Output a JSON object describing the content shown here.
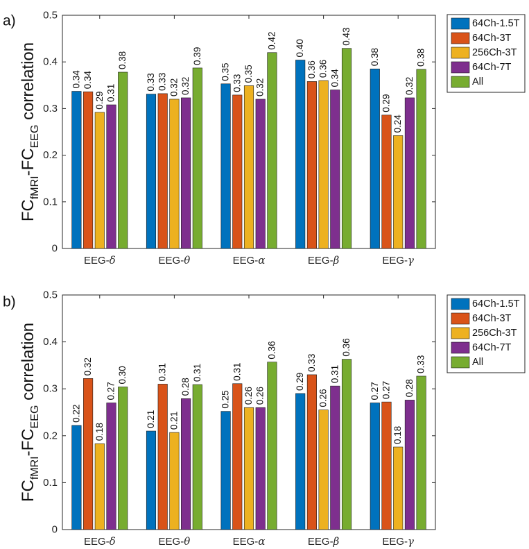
{
  "chart_data": [
    {
      "type": "bar",
      "panel_label": "a)",
      "categories": [
        "EEG-δ",
        "EEG-θ",
        "EEG-α",
        "EEG-β",
        "EEG-γ"
      ],
      "category_prefix": "EEG-",
      "category_symbols": [
        "δ",
        "θ",
        "α",
        "β",
        "γ"
      ],
      "series": [
        {
          "name": "64Ch-1.5T",
          "color": "#0072BD",
          "values": [
            0.337,
            0.331,
            0.353,
            0.404,
            0.385
          ],
          "labels": [
            "0.34",
            "0.33",
            "0.35",
            "0.40",
            "0.38"
          ]
        },
        {
          "name": "64Ch-3T",
          "color": "#D95319",
          "values": [
            0.336,
            0.332,
            0.329,
            0.358,
            0.286
          ],
          "labels": [
            "0.34",
            "0.33",
            "0.33",
            "0.36",
            "0.29"
          ]
        },
        {
          "name": "256Ch-3T",
          "color": "#EDB120",
          "values": [
            0.292,
            0.32,
            0.349,
            0.36,
            0.242
          ],
          "labels": [
            "0.29",
            "0.32",
            "0.35",
            "0.36",
            "0.24"
          ]
        },
        {
          "name": "64Ch-7T",
          "color": "#7E2F8E",
          "values": [
            0.308,
            0.323,
            0.32,
            0.34,
            0.323
          ],
          "labels": [
            "0.31",
            "0.32",
            "0.32",
            "0.34",
            "0.32"
          ]
        },
        {
          "name": "All",
          "color": "#77AC30",
          "values": [
            0.378,
            0.387,
            0.42,
            0.429,
            0.384
          ],
          "labels": [
            "0.38",
            "0.39",
            "0.42",
            "0.43",
            "0.38"
          ]
        }
      ],
      "ylabel": {
        "base1": "FC",
        "sub1": "fMRI",
        "mid": "-FC",
        "sub2": "EEG",
        "tail": " correlation"
      },
      "ylim": [
        0,
        0.5
      ],
      "yticks": [
        "0",
        "0.1",
        "0.2",
        "0.3",
        "0.4",
        "0.5"
      ],
      "legend_position": "top-right outside",
      "grid": false
    },
    {
      "type": "bar",
      "panel_label": "b)",
      "categories": [
        "EEG-δ",
        "EEG-θ",
        "EEG-α",
        "EEG-β",
        "EEG-γ"
      ],
      "category_prefix": "EEG-",
      "category_symbols": [
        "δ",
        "θ",
        "α",
        "β",
        "γ"
      ],
      "series": [
        {
          "name": "64Ch-1.5T",
          "color": "#0072BD",
          "values": [
            0.222,
            0.21,
            0.252,
            0.29,
            0.27
          ],
          "labels": [
            "0.22",
            "0.21",
            "0.25",
            "0.29",
            "0.27"
          ]
        },
        {
          "name": "64Ch-3T",
          "color": "#D95319",
          "values": [
            0.322,
            0.31,
            0.311,
            0.33,
            0.272
          ],
          "labels": [
            "0.32",
            "0.31",
            "0.31",
            "0.33",
            "0.27"
          ]
        },
        {
          "name": "256Ch-3T",
          "color": "#EDB120",
          "values": [
            0.183,
            0.207,
            0.26,
            0.255,
            0.176
          ],
          "labels": [
            "0.18",
            "0.21",
            "0.26",
            "0.26",
            "0.18"
          ]
        },
        {
          "name": "64Ch-7T",
          "color": "#7E2F8E",
          "values": [
            0.27,
            0.279,
            0.26,
            0.306,
            0.276
          ],
          "labels": [
            "0.27",
            "0.28",
            "0.26",
            "0.31",
            "0.28"
          ]
        },
        {
          "name": "All",
          "color": "#77AC30",
          "values": [
            0.304,
            0.309,
            0.357,
            0.363,
            0.327
          ],
          "labels": [
            "0.30",
            "0.31",
            "0.36",
            "0.36",
            "0.33"
          ]
        }
      ],
      "ylabel": {
        "base1": "FC",
        "sub1": "fMRI",
        "mid": "-FC",
        "sub2": "EEG",
        "tail": " correlation"
      },
      "ylim": [
        0,
        0.5
      ],
      "yticks": [
        "0",
        "0.1",
        "0.2",
        "0.3",
        "0.4",
        "0.5"
      ],
      "legend_position": "top-right outside",
      "grid": false
    }
  ]
}
